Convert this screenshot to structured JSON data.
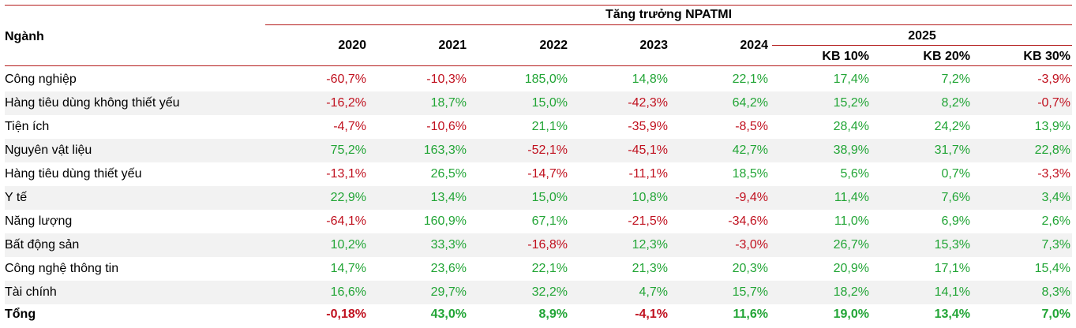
{
  "header": {
    "group_title": "Tăng trưởng NPATMI",
    "sector_label": "Ngành",
    "years": [
      "2020",
      "2021",
      "2022",
      "2023",
      "2024"
    ],
    "forecast_year": "2025",
    "scenarios": [
      "KB 10%",
      "KB 20%",
      "KB 30%"
    ]
  },
  "rows": [
    {
      "name": "Công nghiệp",
      "values": [
        "-60,7%",
        "-10,3%",
        "185,0%",
        "14,8%",
        "22,1%",
        "17,4%",
        "7,2%",
        "-3,9%"
      ]
    },
    {
      "name": "Hàng tiêu dùng không thiết yếu",
      "values": [
        "-16,2%",
        "18,7%",
        "15,0%",
        "-42,3%",
        "64,2%",
        "15,2%",
        "8,2%",
        "-0,7%"
      ]
    },
    {
      "name": "Tiện ích",
      "values": [
        "-4,7%",
        "-10,6%",
        "21,1%",
        "-35,9%",
        "-8,5%",
        "28,4%",
        "24,2%",
        "13,9%"
      ]
    },
    {
      "name": "Nguyên vật liệu",
      "values": [
        "75,2%",
        "163,3%",
        "-52,1%",
        "-45,1%",
        "42,7%",
        "38,9%",
        "31,7%",
        "22,8%"
      ]
    },
    {
      "name": "Hàng tiêu dùng thiết yếu",
      "values": [
        "-13,1%",
        "26,5%",
        "-14,7%",
        "-11,1%",
        "18,5%",
        "5,6%",
        "0,7%",
        "-3,3%"
      ]
    },
    {
      "name": "Y tế",
      "values": [
        "22,9%",
        "13,4%",
        "15,0%",
        "10,8%",
        "-9,4%",
        "11,4%",
        "7,6%",
        "3,4%"
      ]
    },
    {
      "name": "Năng lượng",
      "values": [
        "-64,1%",
        "160,9%",
        "67,1%",
        "-21,5%",
        "-34,6%",
        "11,0%",
        "6,9%",
        "2,6%"
      ]
    },
    {
      "name": "Bất động sản",
      "values": [
        "10,2%",
        "33,3%",
        "-16,8%",
        "12,3%",
        "-3,0%",
        "26,7%",
        "15,3%",
        "7,3%"
      ]
    },
    {
      "name": "Công nghệ thông tin",
      "values": [
        "14,7%",
        "23,6%",
        "22,1%",
        "21,3%",
        "20,3%",
        "20,9%",
        "17,1%",
        "15,4%"
      ]
    },
    {
      "name": "Tài chính",
      "values": [
        "16,6%",
        "29,7%",
        "32,2%",
        "4,7%",
        "15,7%",
        "18,2%",
        "14,1%",
        "8,3%"
      ]
    }
  ],
  "total": {
    "name": "Tổng",
    "values": [
      "-0,18%",
      "43,0%",
      "8,9%",
      "-4,1%",
      "11,6%",
      "19,0%",
      "13,4%",
      "7,0%"
    ]
  },
  "colors": {
    "positive": "#22a536",
    "negative": "#c0111f",
    "rule": "#b31b1b",
    "stripe": "#f2f2f2"
  }
}
